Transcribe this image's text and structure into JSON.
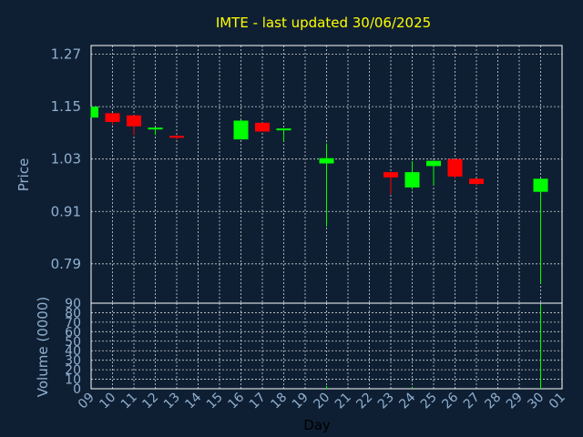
{
  "chart_data": {
    "type": "candlestick",
    "title": "IMTE - last updated 30/06/2025",
    "ylabel": "Price",
    "volume_ylabel": "Volume (0000)",
    "xlabel": "Day",
    "price_ylim": [
      0.7,
      1.29
    ],
    "price_ticks": [
      "1.27",
      "1.15",
      "1.03",
      "0.91",
      "0.79"
    ],
    "price_tick_values": [
      1.27,
      1.15,
      1.03,
      0.91,
      0.79
    ],
    "volume_ylim": [
      0,
      90
    ],
    "volume_ticks": [
      "90",
      "80",
      "70",
      "60",
      "50",
      "40",
      "30",
      "20",
      "10",
      "0"
    ],
    "volume_tick_values": [
      90,
      80,
      70,
      60,
      50,
      40,
      30,
      20,
      10,
      0
    ],
    "x_ticks": [
      "09",
      "10",
      "11",
      "12",
      "13",
      "14",
      "15",
      "16",
      "17",
      "18",
      "19",
      "20",
      "21",
      "22",
      "23",
      "24",
      "25",
      "26",
      "27",
      "28",
      "29",
      "30",
      "01"
    ],
    "candles": [
      {
        "day": "09",
        "open": 1.125,
        "close": 1.15,
        "high": 1.15,
        "low": 1.125
      },
      {
        "day": "10",
        "open": 1.135,
        "close": 1.115,
        "high": 1.135,
        "low": 1.108
      },
      {
        "day": "11",
        "open": 1.13,
        "close": 1.105,
        "high": 1.13,
        "low": 1.085
      },
      {
        "day": "12",
        "open": 1.1,
        "close": 1.102,
        "high": 1.102,
        "low": 1.085
      },
      {
        "day": "13",
        "open": 1.083,
        "close": 1.08,
        "high": 1.085,
        "low": 1.075
      },
      {
        "day": "16",
        "open": 1.075,
        "close": 1.118,
        "high": 1.12,
        "low": 1.075
      },
      {
        "day": "17",
        "open": 1.113,
        "close": 1.093,
        "high": 1.113,
        "low": 1.093
      },
      {
        "day": "18",
        "open": 1.097,
        "close": 1.1,
        "high": 1.1,
        "low": 1.07
      },
      {
        "day": "20",
        "open": 1.02,
        "close": 1.032,
        "high": 1.066,
        "low": 0.875
      },
      {
        "day": "23",
        "open": 1.0,
        "close": 0.988,
        "high": 1.0,
        "low": 0.95
      },
      {
        "day": "24",
        "open": 0.965,
        "close": 1.0,
        "high": 1.025,
        "low": 0.96
      },
      {
        "day": "25",
        "open": 1.014,
        "close": 1.026,
        "high": 1.026,
        "low": 0.97
      },
      {
        "day": "26",
        "open": 1.03,
        "close": 0.99,
        "high": 1.03,
        "low": 0.985
      },
      {
        "day": "27",
        "open": 0.985,
        "close": 0.973,
        "high": 0.985,
        "low": 0.97
      },
      {
        "day": "30",
        "open": 0.955,
        "close": 0.985,
        "high": 0.985,
        "low": 0.745
      }
    ],
    "volume": [
      {
        "day": "20",
        "value": 3
      },
      {
        "day": "24",
        "value": 2
      },
      {
        "day": "30",
        "value": 88
      }
    ],
    "colors": {
      "background": "#0f1f33",
      "up": "#00ff00",
      "down": "#ff0000",
      "title": "#ffff00",
      "axis_text": "#8fb0d0"
    }
  }
}
